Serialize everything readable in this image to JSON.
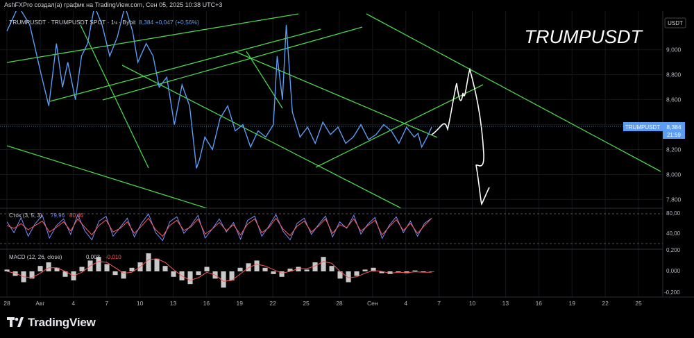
{
  "header": {
    "credit": "AshFXPro создал(а) график на TradingView.com, Сен 05, 2025 10:38 UTC+3"
  },
  "footer": {
    "brand": "TradingView"
  },
  "colors": {
    "background": "#000000",
    "price_line": "#5b9cf5",
    "trendline": "#4cd64c",
    "stoch_k": "#7b8cff",
    "stoch_d": "#ff5a5a",
    "macd_hist": "#c8c8c8",
    "macd_signal": "#ff5a5a",
    "price_badge": "#5b9cf5",
    "projection": "#ffffff"
  },
  "chart_data": {
    "type": "line",
    "title": "TRUMPUSDT",
    "symbol_line": "TRUMPUSDT · TRUMPUSDT SPOT · 1ч · Bybit",
    "ohlc_snippet": "8,384 +0,047 (+0,56%)",
    "currency": "USDT",
    "last_price": {
      "symbol": "TRUMPUSDT",
      "value": "8,384",
      "countdown": "21:59"
    },
    "y_axis": {
      "ticks": [
        "9,000",
        "8,800",
        "8,600",
        "8,400",
        "8,200",
        "8,000",
        "7,800"
      ],
      "ylim": [
        7.73,
        9.31
      ]
    },
    "x_axis": {
      "ticks": [
        "28",
        "Авг",
        "4",
        "7",
        "10",
        "13",
        "16",
        "19",
        "22",
        "25",
        "28",
        "Сен",
        "4",
        "7",
        "10",
        "13",
        "16",
        "19",
        "22",
        "25"
      ]
    },
    "series": [
      {
        "x": [
          0,
          1.5,
          3,
          4.5,
          5.5,
          6.5,
          7.3,
          8,
          9,
          9.8,
          10.6,
          11.5,
          12.5,
          13.5,
          14.5,
          15.5,
          16.5,
          17.2,
          18.3,
          19.2,
          20,
          21,
          22,
          23,
          24,
          24.9,
          25.3,
          26,
          27,
          28,
          29,
          30,
          31,
          32,
          33,
          34,
          35,
          35.5,
          36.2,
          36.7,
          37.5,
          38.5,
          39.5,
          40.5,
          41.5,
          42.5,
          43.5,
          44.5,
          45.5,
          46.5,
          47.5,
          48.5,
          49.5,
          50.5,
          51.5,
          52.5,
          53.5,
          54,
          54.5,
          55.2,
          55.8
        ],
        "values": [
          9.15,
          9.35,
          9.2,
          8.8,
          8.55,
          9.05,
          8.7,
          8.9,
          8.6,
          8.95,
          9.05,
          9.35,
          9.2,
          8.95,
          9.1,
          9.35,
          9.15,
          8.9,
          9.05,
          8.95,
          8.7,
          8.78,
          8.4,
          8.72,
          8.55,
          8.05,
          8.12,
          8.3,
          8.2,
          8.45,
          8.55,
          8.35,
          8.4,
          8.22,
          8.35,
          8.3,
          8.4,
          8.95,
          8.6,
          9.2,
          8.5,
          8.3,
          8.38,
          8.25,
          8.42,
          8.32,
          8.38,
          8.25,
          8.3,
          8.4,
          8.28,
          8.32,
          8.4,
          8.35,
          8.25,
          8.38,
          8.3,
          8.33,
          8.22,
          8.3,
          8.38
        ]
      }
    ],
    "stochastic": {
      "label": "Стох (3, 5, 3)",
      "k_value": "79,96",
      "d_value": "80,46",
      "ticks": [
        "80,00",
        "40,00"
      ],
      "k": [
        70,
        40,
        82,
        30,
        65,
        88,
        25,
        60,
        78,
        35,
        90,
        45,
        20,
        72,
        85,
        30,
        55,
        80,
        28,
        66,
        92,
        40,
        18,
        70,
        84,
        38,
        60,
        88,
        25,
        50,
        78,
        42,
        68,
        22,
        74,
        86,
        30,
        58,
        90,
        44,
        20,
        66,
        80,
        35,
        62,
        86,
        28,
        70,
        52,
        88,
        36,
        64,
        82,
        24,
        60,
        84,
        40,
        72,
        30,
        66,
        80
      ],
      "d": [
        60,
        52,
        65,
        48,
        60,
        72,
        42,
        55,
        70,
        45,
        78,
        55,
        34,
        60,
        75,
        42,
        52,
        70,
        38,
        58,
        80,
        48,
        30,
        60,
        74,
        46,
        56,
        78,
        36,
        50,
        68,
        46,
        62,
        34,
        64,
        78,
        40,
        54,
        80,
        50,
        32,
        58,
        72,
        42,
        58,
        78,
        38,
        62,
        54,
        78,
        44,
        60,
        74,
        34,
        56,
        76,
        46,
        66,
        38,
        60,
        80
      ]
    },
    "macd": {
      "label": "MACD (12, 26, close)",
      "macd_value": "0,003",
      "signal_value": "-0,010",
      "ticks": [
        "0,200",
        "0,000",
        "-0,200"
      ],
      "hist": [
        0.02,
        -0.05,
        -0.12,
        -0.08,
        0.06,
        0.1,
        0.04,
        -0.06,
        -0.1,
        0.05,
        0.12,
        0.16,
        0.08,
        -0.04,
        -0.08,
        0.04,
        0.1,
        0.2,
        0.14,
        0.06,
        -0.06,
        -0.1,
        -0.14,
        -0.04,
        0.05,
        -0.08,
        -0.18,
        -0.1,
        0.04,
        0.09,
        0.12,
        0.04,
        -0.03,
        -0.06,
        0.03,
        0.05,
        0.02,
        0.1,
        0.16,
        0.06,
        -0.08,
        -0.12,
        -0.05,
        0.02,
        0.04,
        -0.02,
        -0.03,
        -0.01,
        -0.02,
        0.01,
        -0.01,
        0.0
      ],
      "signal": [
        0.0,
        -0.02,
        -0.06,
        -0.07,
        -0.02,
        0.04,
        0.04,
        0.0,
        -0.05,
        -0.01,
        0.06,
        0.11,
        0.1,
        0.04,
        -0.02,
        -0.01,
        0.05,
        0.13,
        0.14,
        0.1,
        0.02,
        -0.05,
        -0.1,
        -0.07,
        -0.01,
        -0.04,
        -0.11,
        -0.1,
        -0.03,
        0.04,
        0.08,
        0.06,
        0.02,
        -0.02,
        0.0,
        0.03,
        0.03,
        0.06,
        0.11,
        0.09,
        0.0,
        -0.07,
        -0.06,
        -0.02,
        0.01,
        0.0,
        -0.02,
        -0.01,
        -0.015,
        -0.005,
        -0.01,
        -0.01
      ]
    }
  }
}
